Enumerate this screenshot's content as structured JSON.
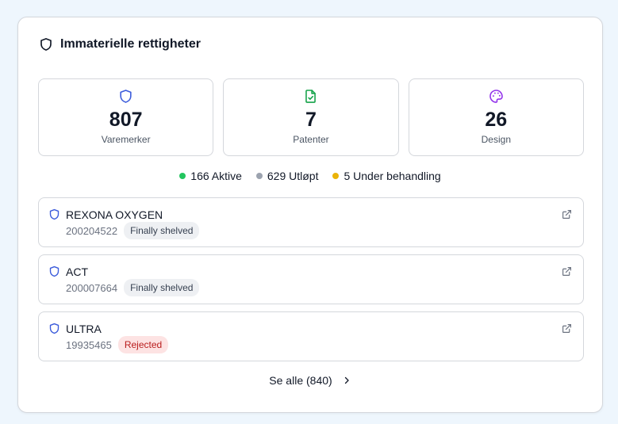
{
  "header": {
    "title": "Immaterielle rettigheter",
    "icon": "shield-icon"
  },
  "stats": [
    {
      "value": "807",
      "label": "Varemerker",
      "icon": "shield-icon",
      "color": "#3b5bdb"
    },
    {
      "value": "7",
      "label": "Patenter",
      "icon": "file-check-icon",
      "color": "#16a34a"
    },
    {
      "value": "26",
      "label": "Design",
      "icon": "palette-icon",
      "color": "#9333ea"
    }
  ],
  "legend": [
    {
      "label": "166 Aktive",
      "color": "#22c55e"
    },
    {
      "label": "629 Utløpt",
      "color": "#9ca3af"
    },
    {
      "label": "5 Under behandling",
      "color": "#eab308"
    }
  ],
  "items": [
    {
      "title": "REXONA OXYGEN",
      "number": "200204522",
      "status": "Finally shelved",
      "status_color": "#eef0f3"
    },
    {
      "title": "ACT",
      "number": "200007664",
      "status": "Finally shelved",
      "status_color": "#eef0f3"
    },
    {
      "title": "ULTRA",
      "number": "19935465",
      "status": "Rejected",
      "status_color": "#fde3e3"
    }
  ],
  "see_all": {
    "label": "Se alle (840)"
  }
}
